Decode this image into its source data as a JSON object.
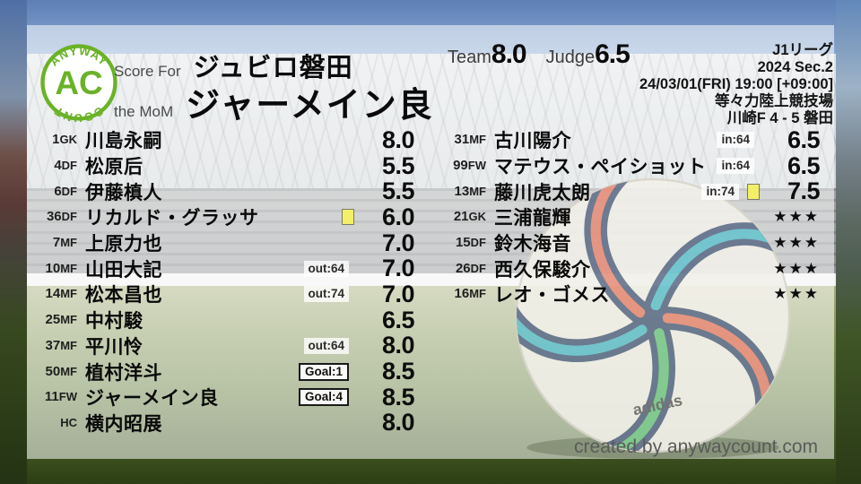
{
  "logo": {
    "top": "ANYWAY",
    "center": "AC",
    "bottom": "COUNT"
  },
  "header": {
    "score_for_label": "Score For",
    "team_name": "ジュビロ磐田",
    "mom_label": "the MoM",
    "mom_name": "ジャーメイン良",
    "team_label": "Team",
    "team_score": "8.0",
    "judge_label": "Judge",
    "judge_score": "6.5"
  },
  "match_info": {
    "league": "J1リーグ",
    "season": "2024 Sec.2",
    "datetime": "24/03/01(FRI) 19:00 [+09:00]",
    "venue": "等々力陸上競技場",
    "result": "川崎F 4 - 5 磐田"
  },
  "starters": [
    {
      "num": "1",
      "pos": "GK",
      "name": "川島永嗣",
      "badge": null,
      "yellow": false,
      "rating": "8.0",
      "stars": false
    },
    {
      "num": "4",
      "pos": "DF",
      "name": "松原后",
      "badge": null,
      "yellow": false,
      "rating": "5.5",
      "stars": false
    },
    {
      "num": "6",
      "pos": "DF",
      "name": "伊藤槙人",
      "badge": null,
      "yellow": false,
      "rating": "5.5",
      "stars": false
    },
    {
      "num": "36",
      "pos": "DF",
      "name": "リカルド・グラッサ",
      "badge": null,
      "yellow": true,
      "rating": "6.0",
      "stars": false
    },
    {
      "num": "7",
      "pos": "MF",
      "name": "上原力也",
      "badge": null,
      "yellow": false,
      "rating": "7.0",
      "stars": false
    },
    {
      "num": "10",
      "pos": "MF",
      "name": "山田大記",
      "badge": {
        "text": "out:64",
        "style": "plain"
      },
      "yellow": false,
      "rating": "7.0",
      "stars": false
    },
    {
      "num": "14",
      "pos": "MF",
      "name": "松本昌也",
      "badge": {
        "text": "out:74",
        "style": "plain"
      },
      "yellow": false,
      "rating": "7.0",
      "stars": false
    },
    {
      "num": "25",
      "pos": "MF",
      "name": "中村駿",
      "badge": null,
      "yellow": false,
      "rating": "6.5",
      "stars": false
    },
    {
      "num": "37",
      "pos": "MF",
      "name": "平川怜",
      "badge": {
        "text": "out:64",
        "style": "plain"
      },
      "yellow": false,
      "rating": "8.0",
      "stars": false
    },
    {
      "num": "50",
      "pos": "MF",
      "name": "植村洋斗",
      "badge": {
        "text": "Goal:1",
        "style": "outlined"
      },
      "yellow": false,
      "rating": "8.5",
      "stars": false
    },
    {
      "num": "11",
      "pos": "FW",
      "name": "ジャーメイン良",
      "badge": {
        "text": "Goal:4",
        "style": "outlined"
      },
      "yellow": false,
      "rating": "8.5",
      "stars": false
    },
    {
      "num": "",
      "pos": "HC",
      "name": "横内昭展",
      "badge": null,
      "yellow": false,
      "rating": "8.0",
      "stars": false
    }
  ],
  "subs": [
    {
      "num": "31",
      "pos": "MF",
      "name": "古川陽介",
      "badge": {
        "text": "in:64",
        "style": "plain"
      },
      "yellow": false,
      "rating": "6.5",
      "stars": false
    },
    {
      "num": "99",
      "pos": "FW",
      "name": "マテウス・ペイショット",
      "badge": {
        "text": "in:64",
        "style": "plain"
      },
      "yellow": false,
      "rating": "6.5",
      "stars": false
    },
    {
      "num": "13",
      "pos": "MF",
      "name": "藤川虎太朗",
      "badge": {
        "text": "in:74",
        "style": "plain"
      },
      "yellow": true,
      "rating": "7.5",
      "stars": false
    },
    {
      "num": "21",
      "pos": "GK",
      "name": "三浦龍輝",
      "badge": null,
      "yellow": false,
      "rating": "★★★",
      "stars": true
    },
    {
      "num": "15",
      "pos": "DF",
      "name": "鈴木海音",
      "badge": null,
      "yellow": false,
      "rating": "★★★",
      "stars": true
    },
    {
      "num": "26",
      "pos": "DF",
      "name": "西久保駿介",
      "badge": null,
      "yellow": false,
      "rating": "★★★",
      "stars": true
    },
    {
      "num": "16",
      "pos": "MF",
      "name": "レオ・ゴメス",
      "badge": null,
      "yellow": false,
      "rating": "★★★",
      "stars": true
    }
  ],
  "ball": {
    "brand": "adidas"
  },
  "footer": {
    "credit": "created by anywaycount.com"
  },
  "colors": {
    "accent_green": "#6ab227",
    "yellow_card": "#f3ef67",
    "text_black": "#0a0a0a",
    "label_gray": "#4b4b4b"
  }
}
